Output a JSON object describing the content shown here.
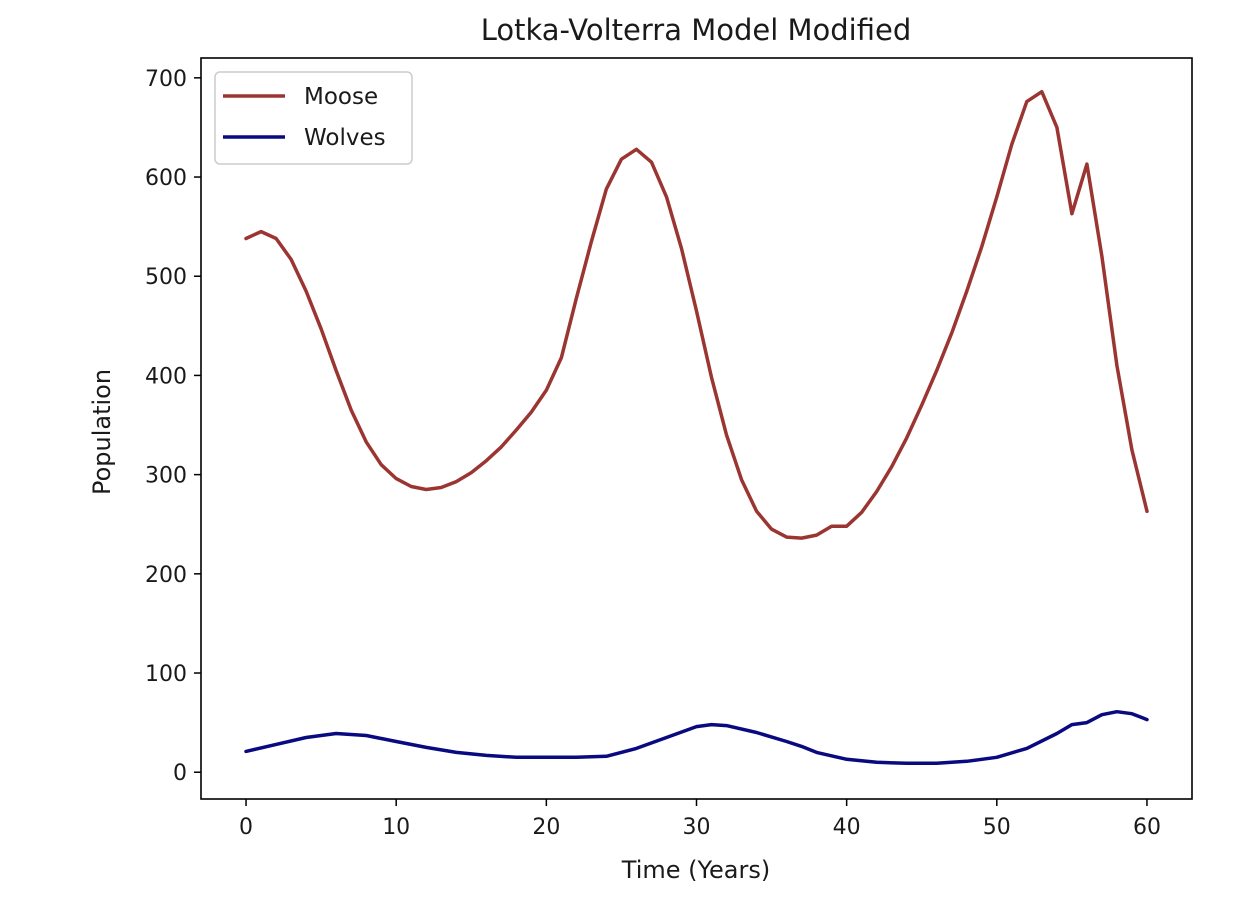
{
  "chart_data": {
    "type": "line",
    "title": "Lotka-Volterra Model Modified",
    "xlabel": "Time (Years)",
    "ylabel": "Population",
    "xlim": [
      -3,
      63
    ],
    "ylim": [
      -27,
      720
    ],
    "xticks": [
      0,
      10,
      20,
      30,
      40,
      50,
      60
    ],
    "yticks": [
      0,
      100,
      200,
      300,
      400,
      500,
      600,
      700
    ],
    "grid": false,
    "legend_position": "top-left",
    "series": [
      {
        "name": "Moose",
        "color": "#9b3532",
        "x": [
          0,
          1,
          2,
          3,
          4,
          5,
          6,
          7,
          8,
          9,
          10,
          11,
          12,
          13,
          14,
          15,
          16,
          17,
          18,
          19,
          20,
          21,
          22,
          23,
          24,
          25,
          26,
          27,
          28,
          29,
          30,
          31,
          32,
          33,
          34,
          35,
          36,
          37,
          38,
          39,
          40,
          41,
          42,
          43,
          44,
          45,
          46,
          47,
          48,
          49,
          50,
          51,
          52,
          53,
          54,
          55,
          56,
          57,
          58,
          59,
          60
        ],
        "values": [
          538,
          545,
          538,
          517,
          485,
          447,
          405,
          365,
          333,
          310,
          296,
          288,
          285,
          287,
          293,
          302,
          314,
          328,
          345,
          363,
          385,
          418,
          478,
          535,
          588,
          618,
          628,
          615,
          580,
          528,
          465,
          398,
          340,
          295,
          263,
          245,
          237,
          236,
          239,
          248,
          248,
          262,
          283,
          308,
          337,
          370,
          405,
          443,
          485,
          530,
          580,
          633,
          676,
          686,
          650,
          563,
          613,
          520,
          410,
          325,
          263
        ]
      },
      {
        "name": "Wolves",
        "color": "#0a0a80",
        "x": [
          0,
          2,
          4,
          6,
          8,
          10,
          12,
          14,
          16,
          18,
          20,
          22,
          24,
          26,
          28,
          30,
          31,
          32,
          34,
          36,
          37,
          38,
          40,
          42,
          44,
          46,
          48,
          50,
          52,
          54,
          55,
          56,
          57,
          58,
          59,
          60
        ],
        "values": [
          21,
          28,
          35,
          39,
          37,
          31,
          25,
          20,
          17,
          15,
          15,
          15,
          16,
          24,
          35,
          46,
          48,
          47,
          40,
          31,
          26,
          20,
          13,
          10,
          9,
          9,
          11,
          15,
          24,
          39,
          48,
          50,
          58,
          61,
          59,
          53
        ]
      }
    ]
  }
}
